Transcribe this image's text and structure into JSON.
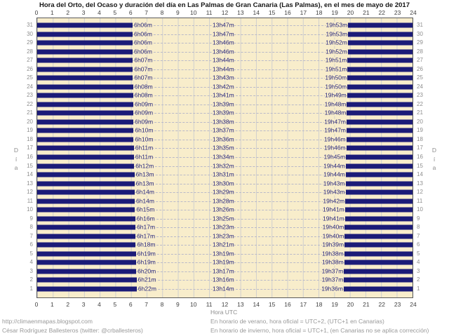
{
  "title": "Hora del Orto, del Ocaso y duración del día en Las Palmas de Gran Canaria (Las Palmas), en el mes de mayo de 2017",
  "day_axis_label": "Día",
  "hour_axis": {
    "label": "Hora UTC",
    "ticks": [
      0,
      1,
      2,
      3,
      4,
      5,
      6,
      7,
      8,
      9,
      10,
      11,
      12,
      13,
      14,
      15,
      16,
      17,
      18,
      19,
      20,
      21,
      22,
      23,
      24
    ]
  },
  "footer": {
    "site": "http://climaenmapas.blogspot.com",
    "author": "César Rodríguez Ballesteros (twitter: @crballesteros)",
    "note_summer": "En horario de verano, hora oficial = UTC+2, (UTC+1 en Canarias)",
    "note_winter": "En horario de invierno, hora oficial = UTC+1, (en Canarias no se aplica corrección)"
  },
  "colors": {
    "night_bar": "#1b1b78",
    "plot_background": "#f8edcb",
    "grid_line": "#cfcfcf",
    "dash_line": "#b9b9c9",
    "time_label": "#23237d",
    "day_number": "#8e8e8e"
  },
  "chart_data": {
    "type": "bar",
    "subtype": "daylight-day-night-gantt",
    "title": "Hora del Orto, del Ocaso y duración del día en Las Palmas de Gran Canaria (Las Palmas), en el mes de mayo de 2017",
    "xlabel": "Hora UTC",
    "ylabel": "Día",
    "xlim": [
      0,
      24
    ],
    "grid": true,
    "rows_top_to_bottom": "day 31 at top, day 1 at bottom",
    "encoding": "dark bars = night (00:00–sunrise and sunset–24:00); light band = daylight; labels show sunrise, day duration, sunset",
    "days": [
      {
        "day": 1,
        "sunrise": "6h22m",
        "daylight": "13h14m",
        "sunset": "19h36m"
      },
      {
        "day": 2,
        "sunrise": "6h21m",
        "daylight": "13h16m",
        "sunset": "19h37m"
      },
      {
        "day": 3,
        "sunrise": "6h20m",
        "daylight": "13h17m",
        "sunset": "19h37m"
      },
      {
        "day": 4,
        "sunrise": "6h19m",
        "daylight": "13h19m",
        "sunset": "19h38m"
      },
      {
        "day": 5,
        "sunrise": "6h19m",
        "daylight": "13h19m",
        "sunset": "19h38m"
      },
      {
        "day": 6,
        "sunrise": "6h18m",
        "daylight": "13h21m",
        "sunset": "19h39m"
      },
      {
        "day": 7,
        "sunrise": "6h17m",
        "daylight": "13h23m",
        "sunset": "19h40m"
      },
      {
        "day": 8,
        "sunrise": "6h17m",
        "daylight": "13h23m",
        "sunset": "19h40m"
      },
      {
        "day": 9,
        "sunrise": "6h16m",
        "daylight": "13h25m",
        "sunset": "19h41m"
      },
      {
        "day": 10,
        "sunrise": "6h15m",
        "daylight": "13h26m",
        "sunset": "19h41m"
      },
      {
        "day": 11,
        "sunrise": "6h14m",
        "daylight": "13h28m",
        "sunset": "19h42m"
      },
      {
        "day": 12,
        "sunrise": "6h14m",
        "daylight": "13h29m",
        "sunset": "19h43m"
      },
      {
        "day": 13,
        "sunrise": "6h13m",
        "daylight": "13h30m",
        "sunset": "19h43m"
      },
      {
        "day": 14,
        "sunrise": "6h13m",
        "daylight": "13h31m",
        "sunset": "19h44m"
      },
      {
        "day": 15,
        "sunrise": "6h12m",
        "daylight": "13h32m",
        "sunset": "19h44m"
      },
      {
        "day": 16,
        "sunrise": "6h11m",
        "daylight": "13h34m",
        "sunset": "19h45m"
      },
      {
        "day": 17,
        "sunrise": "6h11m",
        "daylight": "13h35m",
        "sunset": "19h46m"
      },
      {
        "day": 18,
        "sunrise": "6h10m",
        "daylight": "13h36m",
        "sunset": "19h46m"
      },
      {
        "day": 19,
        "sunrise": "6h10m",
        "daylight": "13h37m",
        "sunset": "19h47m"
      },
      {
        "day": 20,
        "sunrise": "6h09m",
        "daylight": "13h38m",
        "sunset": "19h47m"
      },
      {
        "day": 21,
        "sunrise": "6h09m",
        "daylight": "13h39m",
        "sunset": "19h48m"
      },
      {
        "day": 22,
        "sunrise": "6h09m",
        "daylight": "13h39m",
        "sunset": "19h48m"
      },
      {
        "day": 23,
        "sunrise": "6h08m",
        "daylight": "13h41m",
        "sunset": "19h49m"
      },
      {
        "day": 24,
        "sunrise": "6h08m",
        "daylight": "13h42m",
        "sunset": "19h50m"
      },
      {
        "day": 25,
        "sunrise": "6h07m",
        "daylight": "13h43m",
        "sunset": "19h50m"
      },
      {
        "day": 26,
        "sunrise": "6h07m",
        "daylight": "13h44m",
        "sunset": "19h51m"
      },
      {
        "day": 27,
        "sunrise": "6h07m",
        "daylight": "13h44m",
        "sunset": "19h51m"
      },
      {
        "day": 28,
        "sunrise": "6h06m",
        "daylight": "13h46m",
        "sunset": "19h52m"
      },
      {
        "day": 29,
        "sunrise": "6h06m",
        "daylight": "13h46m",
        "sunset": "19h52m"
      },
      {
        "day": 30,
        "sunrise": "6h06m",
        "daylight": "13h47m",
        "sunset": "19h53m"
      },
      {
        "day": 31,
        "sunrise": "6h06m",
        "daylight": "13h47m",
        "sunset": "19h53m"
      }
    ]
  }
}
